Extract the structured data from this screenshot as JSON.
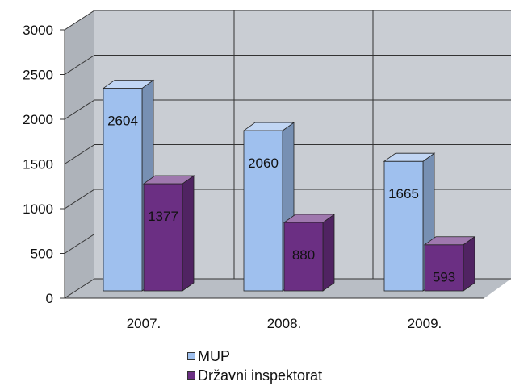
{
  "chart_data": {
    "type": "bar",
    "categories": [
      "2007.",
      "2008.",
      "2009."
    ],
    "series": [
      {
        "name": "MUP",
        "values": [
          2604,
          2060,
          1665
        ],
        "color": "#9fc0ee"
      },
      {
        "name": "Državni inspektorat",
        "values": [
          1377,
          880,
          593
        ],
        "color": "#6b2f83"
      }
    ],
    "yticks": [
      "0",
      "500",
      "1000",
      "1500",
      "2000",
      "2500",
      "3000"
    ],
    "ylim": [
      0,
      3000
    ],
    "grid": true,
    "legend": "bottom",
    "chart_style": "3d-clustered-column"
  }
}
